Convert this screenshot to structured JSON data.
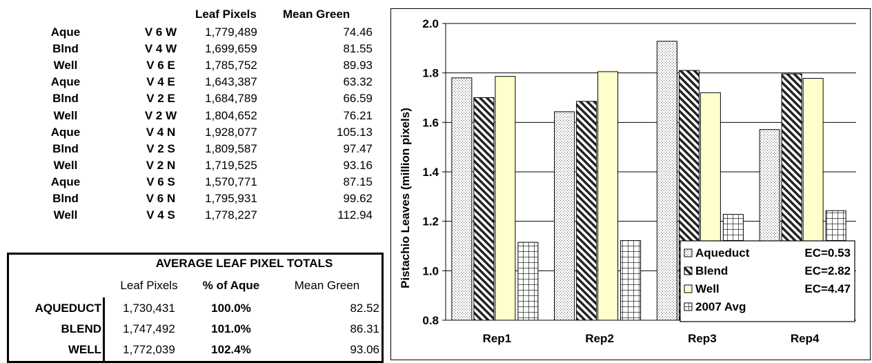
{
  "table": {
    "col_headers": {
      "leaf_pixels": "Leaf Pixels",
      "mean_green": "Mean Green"
    },
    "rows": [
      {
        "trt": "Aque",
        "plot": "V 6 W",
        "pixels": "1,779,489",
        "green": "74.46"
      },
      {
        "trt": "Blnd",
        "plot": "V 4 W",
        "pixels": "1,699,659",
        "green": "81.55"
      },
      {
        "trt": "Well",
        "plot": "V 6 E",
        "pixels": "1,785,752",
        "green": "89.93"
      },
      {
        "trt": "Aque",
        "plot": "V 4 E",
        "pixels": "1,643,387",
        "green": "63.32"
      },
      {
        "trt": "Blnd",
        "plot": "V 2 E",
        "pixels": "1,684,789",
        "green": "66.59"
      },
      {
        "trt": "Well",
        "plot": "V 2 W",
        "pixels": "1,804,652",
        "green": "76.21"
      },
      {
        "trt": "Aque",
        "plot": "V 4 N",
        "pixels": "1,928,077",
        "green": "105.13"
      },
      {
        "trt": "Blnd",
        "plot": "V 2 S",
        "pixels": "1,809,587",
        "green": "97.47"
      },
      {
        "trt": "Well",
        "plot": "V 2 N",
        "pixels": "1,719,525",
        "green": "93.16"
      },
      {
        "trt": "Aque",
        "plot": "V 6 S",
        "pixels": "1,570,771",
        "green": "87.15"
      },
      {
        "trt": "Blnd",
        "plot": "V 6 N",
        "pixels": "1,795,931",
        "green": "99.62"
      },
      {
        "trt": "Well",
        "plot": "V 4 S",
        "pixels": "1,778,227",
        "green": "112.94"
      }
    ]
  },
  "summary": {
    "title": "AVERAGE LEAF PIXEL TOTALS",
    "headers": {
      "leaf_pixels": "Leaf Pixels",
      "pct": "% of Aque",
      "mean_green": "Mean Green"
    },
    "rows": [
      {
        "label": "AQUEDUCT",
        "pixels": "1,730,431",
        "pct": "100.0%",
        "green": "82.52"
      },
      {
        "label": "BLEND",
        "pixels": "1,747,492",
        "pct": "101.0%",
        "green": "86.31"
      },
      {
        "label": "WELL",
        "pixels": "1,772,039",
        "pct": "102.4%",
        "green": "93.06"
      }
    ]
  },
  "chart_data": {
    "type": "bar",
    "title": "",
    "xlabel": "",
    "ylabel": "Pistachio Leaves (million pixels)",
    "categories": [
      "Rep1",
      "Rep2",
      "Rep3",
      "Rep4"
    ],
    "ylim": [
      0.8,
      2.0
    ],
    "yticks": [
      "0.8",
      "1.0",
      "1.2",
      "1.4",
      "1.6",
      "1.8",
      "2.0"
    ],
    "grid": true,
    "legend_position": "bottom-right",
    "series": [
      {
        "name": "Aqueduct",
        "ec": "EC=0.53",
        "pattern": "dots",
        "color": "#ffffff",
        "values": [
          1.78,
          1.643,
          1.928,
          1.571
        ]
      },
      {
        "name": "Blend",
        "ec": "EC=2.82",
        "pattern": "diagonal",
        "color": "#ffffff",
        "values": [
          1.7,
          1.685,
          1.81,
          1.796
        ]
      },
      {
        "name": "Well",
        "ec": "EC=4.47",
        "pattern": "solid",
        "color": "#ffffcc",
        "values": [
          1.786,
          1.805,
          1.72,
          1.778
        ]
      },
      {
        "name": "2007 Avg",
        "ec": "",
        "pattern": "grid",
        "color": "#ffffff",
        "values": [
          1.115,
          1.122,
          1.228,
          1.243
        ]
      }
    ]
  }
}
